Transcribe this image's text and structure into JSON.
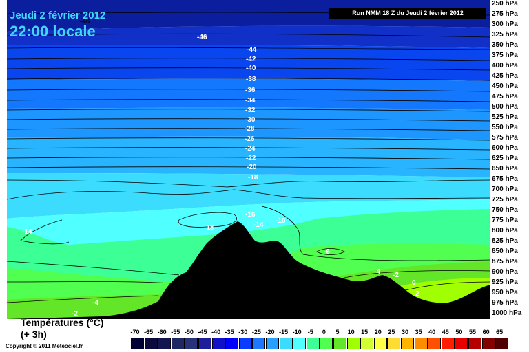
{
  "header": {
    "date": "Jeudi 2 février 2012",
    "time": "22:00 locale",
    "run": "Run NMM 18 Z du Jeudi 2 février 2012"
  },
  "footer": {
    "title": "Températures (°C)",
    "subtitle": "(+ 3h)",
    "copyright": "Copyright © 2011 Meteociel.fr"
  },
  "pressure_levels": [
    "250 hPa",
    "275 hPa",
    "300 hPa",
    "325 hPa",
    "350 hPa",
    "375 hPa",
    "400 hPa",
    "425 hPa",
    "450 hPa",
    "475 hPa",
    "500 hPa",
    "525 hPa",
    "550 hPa",
    "575 hPa",
    "600 hPa",
    "625 hPa",
    "650 hPa",
    "675 hPa",
    "700 hPa",
    "725 hPa",
    "750 hPa",
    "775 hPa",
    "800 hPa",
    "825 hPa",
    "850 hPa",
    "875 hPa",
    "900 hPa",
    "925 hPa",
    "950 hPa",
    "975 hPa",
    "1000 hPa"
  ],
  "legend": {
    "values": [
      "-70",
      "-65",
      "-60",
      "-55",
      "-50",
      "-45",
      "-40",
      "-35",
      "-30",
      "-25",
      "-20",
      "-15",
      "-10",
      "-5",
      "0",
      "5",
      "10",
      "15",
      "20",
      "25",
      "30",
      "35",
      "40",
      "45",
      "50",
      "55",
      "60",
      "65"
    ],
    "colors": [
      "#000033",
      "#0a0a3c",
      "#141450",
      "#1e2864",
      "#28327a",
      "#1e1e9a",
      "#1010c8",
      "#0000ff",
      "#0a3cff",
      "#1e78ff",
      "#28a0ff",
      "#3cdcff",
      "#50ffff",
      "#3cff96",
      "#50ff50",
      "#64e628",
      "#a0ff00",
      "#d2ff32",
      "#ffff46",
      "#ffdc32",
      "#ffb400",
      "#ff8c00",
      "#ff5000",
      "#ff1e00",
      "#e60000",
      "#b40000",
      "#820000",
      "#500000"
    ]
  },
  "isotherm_labels": [
    {
      "text": "-46",
      "row": "300 hPa",
      "pos": "upper-left"
    },
    {
      "text": "-46",
      "row": "325 hPa",
      "pos": "left-center"
    },
    {
      "text": "-44",
      "row": "350 hPa",
      "pos": "center"
    },
    {
      "text": "-42",
      "row": "375 hPa",
      "pos": "center"
    },
    {
      "text": "-40",
      "row": "400 hPa",
      "pos": "center"
    },
    {
      "text": "-38",
      "row": "425 hPa",
      "pos": "center"
    },
    {
      "text": "-36",
      "row": "450 hPa",
      "pos": "center"
    },
    {
      "text": "-34",
      "row": "475 hPa",
      "pos": "center"
    },
    {
      "text": "-32",
      "row": "500 hPa",
      "pos": "center"
    },
    {
      "text": "-30",
      "row": "525 hPa",
      "pos": "center"
    },
    {
      "text": "-28",
      "row": "550 hPa",
      "pos": "center"
    },
    {
      "text": "-26",
      "row": "575 hPa",
      "pos": "center"
    },
    {
      "text": "-24",
      "row": "600 hPa",
      "pos": "center"
    },
    {
      "text": "-22",
      "row": "625 hPa",
      "pos": "center"
    },
    {
      "text": "-20",
      "row": "650 hPa",
      "pos": "center"
    },
    {
      "text": "-18",
      "row": "675 hPa",
      "pos": "center"
    },
    {
      "text": "-18",
      "row": "775 hPa",
      "pos": "left-center"
    },
    {
      "text": "-16",
      "row": "750 hPa",
      "pos": "center"
    },
    {
      "text": "-14",
      "row": "775 hPa",
      "pos": "center"
    },
    {
      "text": "-10",
      "row": "775 hPa",
      "pos": "center-right"
    },
    {
      "text": "-14",
      "row": "800 hPa",
      "pos": "left"
    },
    {
      "text": "-6",
      "row": "850 hPa",
      "pos": "right"
    },
    {
      "text": "-4",
      "row": "900 hPa",
      "pos": "right"
    },
    {
      "text": "-2",
      "row": "900 hPa",
      "pos": "right"
    },
    {
      "text": "0",
      "row": "925 hPa",
      "pos": "right"
    },
    {
      "text": "2",
      "row": "950 hPa",
      "pos": "right"
    },
    {
      "text": "-4",
      "row": "975 hPa",
      "pos": "left"
    },
    {
      "text": "-2",
      "row": "1000 hPa",
      "pos": "left"
    }
  ]
}
